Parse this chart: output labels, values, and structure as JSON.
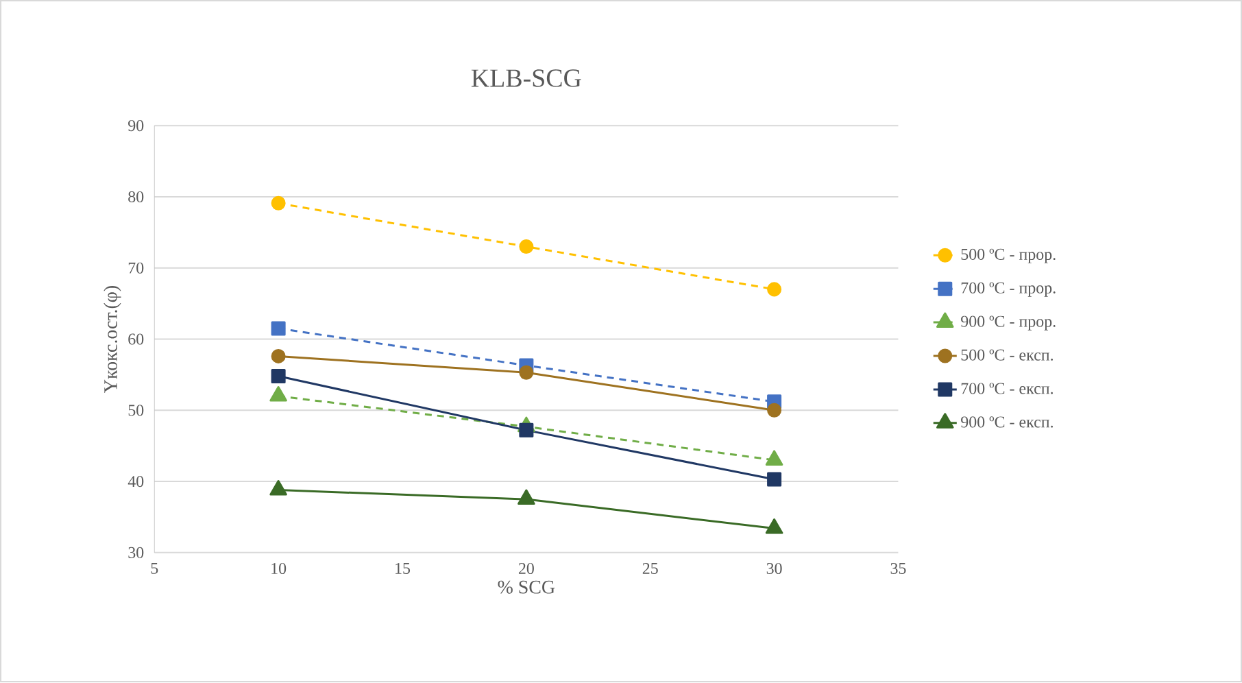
{
  "chart_data": {
    "type": "line",
    "title": "KLB-SCG",
    "xlabel": "% SCG",
    "ylabel": "Yкокс.ост.(φ)",
    "x": [
      10,
      20,
      30
    ],
    "xlim": [
      5,
      35
    ],
    "xticks": [
      5,
      10,
      15,
      20,
      25,
      30,
      35
    ],
    "ylim": [
      30,
      90
    ],
    "yticks": [
      30,
      40,
      50,
      60,
      70,
      80,
      90
    ],
    "grid": "y",
    "legend": "right",
    "series": [
      {
        "name": "500 ºC - прор.",
        "color": "#ffc000",
        "marker": "circle",
        "line_style": "dashed",
        "values": [
          79.1,
          73.0,
          67.0
        ]
      },
      {
        "name": "700 ºC - прор.",
        "color": "#4472c4",
        "marker": "square",
        "line_style": "dashed",
        "values": [
          61.5,
          56.3,
          51.2
        ]
      },
      {
        "name": "900 ºC - прор.",
        "color": "#70ad47",
        "marker": "triangle",
        "line_style": "dashed",
        "values": [
          52.0,
          47.7,
          43.0
        ]
      },
      {
        "name": "500 ºC - експ.",
        "color": "#9e7220",
        "marker": "circle",
        "line_style": "solid",
        "values": [
          57.6,
          55.3,
          50.0
        ]
      },
      {
        "name": "700 ºC - експ.",
        "color": "#203864",
        "marker": "square",
        "line_style": "solid",
        "values": [
          54.8,
          47.2,
          40.3
        ]
      },
      {
        "name": "900 ºC - експ.",
        "color": "#3a6b26",
        "marker": "triangle",
        "line_style": "solid",
        "values": [
          38.8,
          37.5,
          33.4
        ]
      }
    ]
  }
}
